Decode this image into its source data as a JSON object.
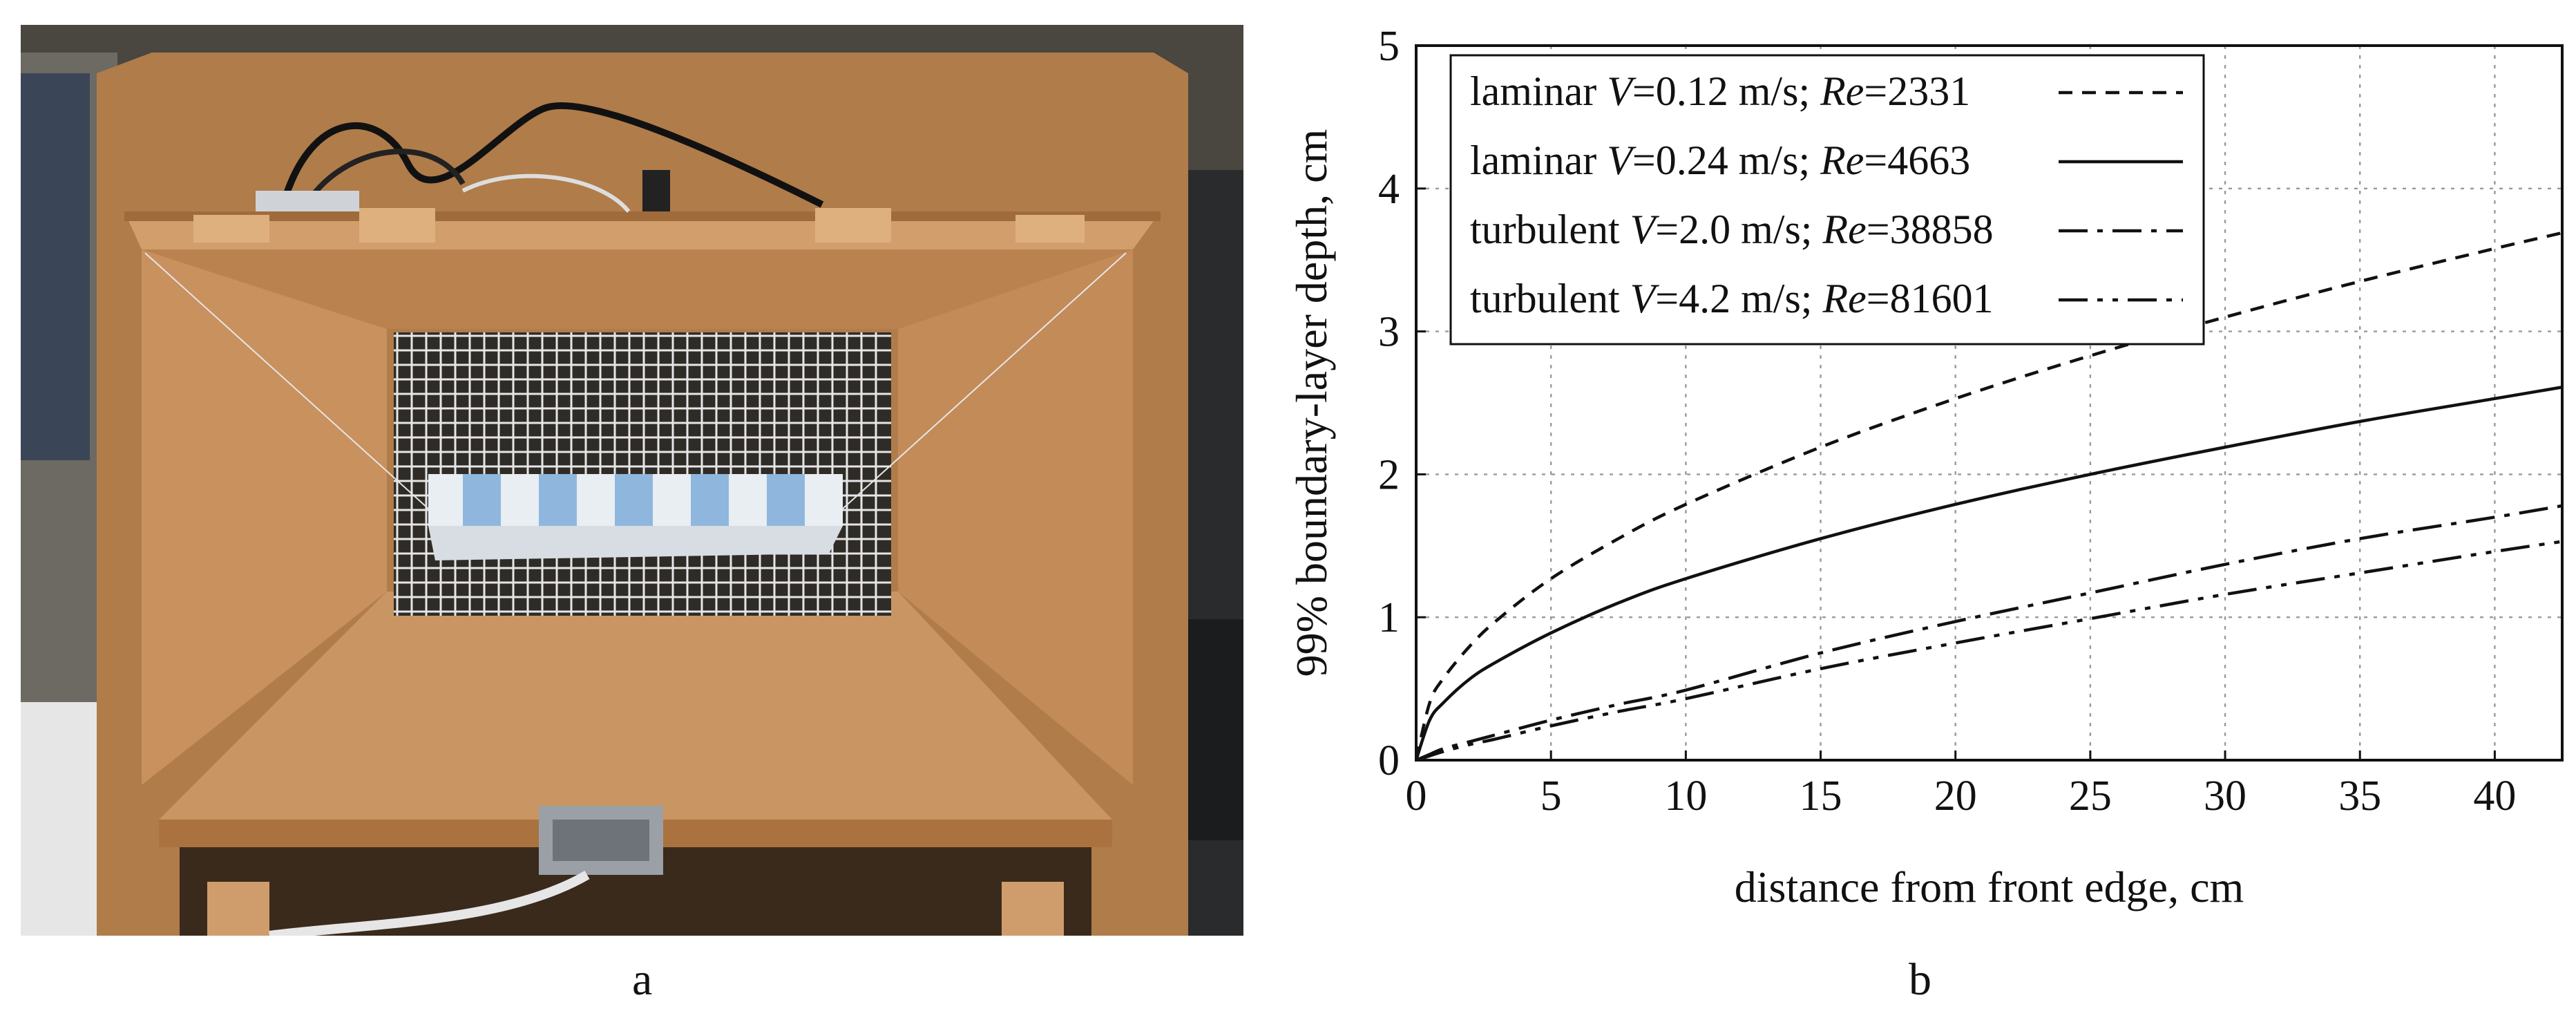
{
  "figure": {
    "panel_labels": {
      "a": "a",
      "b": "b"
    },
    "photo": {
      "colors": {
        "wood": "#c8915e",
        "wood_dark": "#a5703f",
        "wood_shade": "#8b5c33",
        "background": "#2a2b2d",
        "grid_wire": "#e6e6e6",
        "foam": "#e9eef3",
        "foam_blue": "#8fb7de",
        "sensor": "#9aa0a6"
      }
    }
  },
  "chart_data": {
    "type": "line",
    "xlabel": "distance from front edge, cm",
    "ylabel": "99% boundary-layer depth, cm",
    "xlim": [
      0,
      42.5
    ],
    "ylim": [
      0,
      5
    ],
    "xticks": [
      "0",
      "5",
      "10",
      "15",
      "20",
      "25",
      "30",
      "35",
      "40"
    ],
    "yticks": [
      "0",
      "1",
      "2",
      "3",
      "4",
      "5"
    ],
    "grid": true,
    "legend_position": "top-left",
    "series": [
      {
        "legend": {
          "flow": "laminar",
          "v_label": "V",
          "v_value": "=0.12 m/s;",
          "re_label": "Re",
          "re_value": "=2331"
        },
        "line_style": "dashed",
        "x": [
          0,
          0.5,
          1,
          2,
          3,
          5,
          7.5,
          10,
          15,
          20,
          25,
          30,
          35,
          40,
          42.5
        ],
        "y": [
          0,
          0.4,
          0.57,
          0.8,
          0.98,
          1.27,
          1.55,
          1.79,
          2.19,
          2.53,
          2.83,
          3.1,
          3.35,
          3.58,
          3.69
        ]
      },
      {
        "legend": {
          "flow": "laminar",
          "v_label": "V",
          "v_value": "=0.24 m/s;",
          "re_label": "Re",
          "re_value": "=4663"
        },
        "line_style": "solid",
        "x": [
          0,
          0.5,
          1,
          2,
          3,
          5,
          7.5,
          10,
          15,
          20,
          25,
          30,
          35,
          40,
          42.5
        ],
        "y": [
          0,
          0.28,
          0.4,
          0.57,
          0.69,
          0.89,
          1.1,
          1.27,
          1.55,
          1.79,
          2.0,
          2.19,
          2.37,
          2.53,
          2.61
        ]
      },
      {
        "legend": {
          "flow": "turbulent",
          "v_label": "V",
          "v_value": "=2.0 m/s;",
          "re_label": "Re",
          "re_value": "=38858"
        },
        "line_style": "dash-dot",
        "x": [
          0,
          0.5,
          1,
          2,
          3,
          5,
          7.5,
          10,
          15,
          20,
          25,
          30,
          35,
          40,
          42.5
        ],
        "y": [
          0,
          0.04,
          0.08,
          0.13,
          0.18,
          0.28,
          0.39,
          0.49,
          0.75,
          0.97,
          1.17,
          1.37,
          1.55,
          1.7,
          1.78
        ]
      },
      {
        "legend": {
          "flow": "turbulent",
          "v_label": "V",
          "v_value": "=4.2 m/s;",
          "re_label": "Re",
          "re_value": "=81601"
        },
        "line_style": "dash-dot-dot",
        "x": [
          0,
          0.5,
          1,
          2,
          3,
          5,
          7.5,
          10,
          15,
          20,
          25,
          30,
          35,
          40,
          42.5
        ],
        "y": [
          0,
          0.03,
          0.06,
          0.11,
          0.15,
          0.24,
          0.34,
          0.43,
          0.64,
          0.82,
          0.99,
          1.16,
          1.31,
          1.46,
          1.53
        ]
      }
    ]
  }
}
